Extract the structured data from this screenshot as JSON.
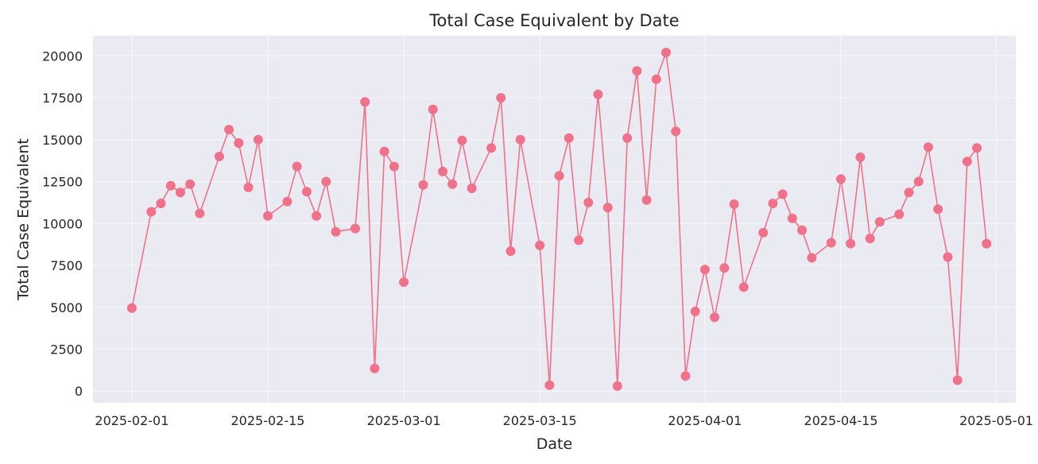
{
  "chart_data": {
    "type": "line",
    "title": "Total Case Equivalent by Date",
    "xlabel": "Date",
    "ylabel": "Total Case Equivalent",
    "xlim": [
      "2025-01-28",
      "2025-05-03"
    ],
    "ylim": [
      -700,
      21200
    ],
    "x_ticks": [
      "2025-02-01",
      "2025-02-15",
      "2025-03-01",
      "2025-03-15",
      "2025-04-01",
      "2025-04-15",
      "2025-05-01"
    ],
    "y_ticks": [
      0,
      2500,
      5000,
      7500,
      10000,
      12500,
      15000,
      17500,
      20000
    ],
    "grid": true,
    "line_color": "#f0718a",
    "background_color": "#eaeaf2",
    "series": [
      {
        "x": [
          "2025-02-01",
          "2025-02-03",
          "2025-02-04",
          "2025-02-05",
          "2025-02-06",
          "2025-02-07",
          "2025-02-08",
          "2025-02-10",
          "2025-02-11",
          "2025-02-12",
          "2025-02-13",
          "2025-02-14",
          "2025-02-15",
          "2025-02-17",
          "2025-02-18",
          "2025-02-19",
          "2025-02-20",
          "2025-02-21",
          "2025-02-22",
          "2025-02-24",
          "2025-02-25",
          "2025-02-26",
          "2025-02-27",
          "2025-02-28",
          "2025-03-01",
          "2025-03-03",
          "2025-03-04",
          "2025-03-05",
          "2025-03-06",
          "2025-03-07",
          "2025-03-08",
          "2025-03-10",
          "2025-03-11",
          "2025-03-12",
          "2025-03-13",
          "2025-03-15",
          "2025-03-16",
          "2025-03-17",
          "2025-03-18",
          "2025-03-19",
          "2025-03-20",
          "2025-03-21",
          "2025-03-22",
          "2025-03-23",
          "2025-03-24",
          "2025-03-25",
          "2025-03-26",
          "2025-03-27",
          "2025-03-28",
          "2025-03-29",
          "2025-03-30",
          "2025-03-31",
          "2025-04-01",
          "2025-04-02",
          "2025-04-03",
          "2025-04-04",
          "2025-04-05",
          "2025-04-07",
          "2025-04-08",
          "2025-04-09",
          "2025-04-10",
          "2025-04-11",
          "2025-04-12",
          "2025-04-14",
          "2025-04-15",
          "2025-04-16",
          "2025-04-17",
          "2025-04-18",
          "2025-04-19",
          "2025-04-21",
          "2025-04-22",
          "2025-04-23",
          "2025-04-24",
          "2025-04-25",
          "2025-04-26",
          "2025-04-27",
          "2025-04-28",
          "2025-04-29",
          "2025-04-30"
        ],
        "values": [
          4950,
          10700,
          11200,
          12250,
          11850,
          12350,
          10600,
          14000,
          15600,
          14800,
          12150,
          15000,
          10450,
          11300,
          13400,
          11900,
          10450,
          12500,
          9500,
          9700,
          17250,
          1350,
          14300,
          13400,
          6500,
          12300,
          16800,
          13100,
          12350,
          14950,
          12100,
          14500,
          17500,
          8350,
          15000,
          8700,
          350,
          12850,
          15100,
          9000,
          11250,
          17700,
          10950,
          300,
          15100,
          19100,
          11400,
          18600,
          20200,
          15500,
          900,
          4750,
          7250,
          4400,
          7350,
          11150,
          6200,
          9450,
          11200,
          11750,
          10300,
          9600,
          7950,
          8850,
          12650,
          8800,
          13950,
          9100,
          10100,
          10550,
          11850,
          12500,
          14550,
          10850,
          8000,
          650,
          13700,
          14500,
          8800
        ]
      }
    ]
  }
}
